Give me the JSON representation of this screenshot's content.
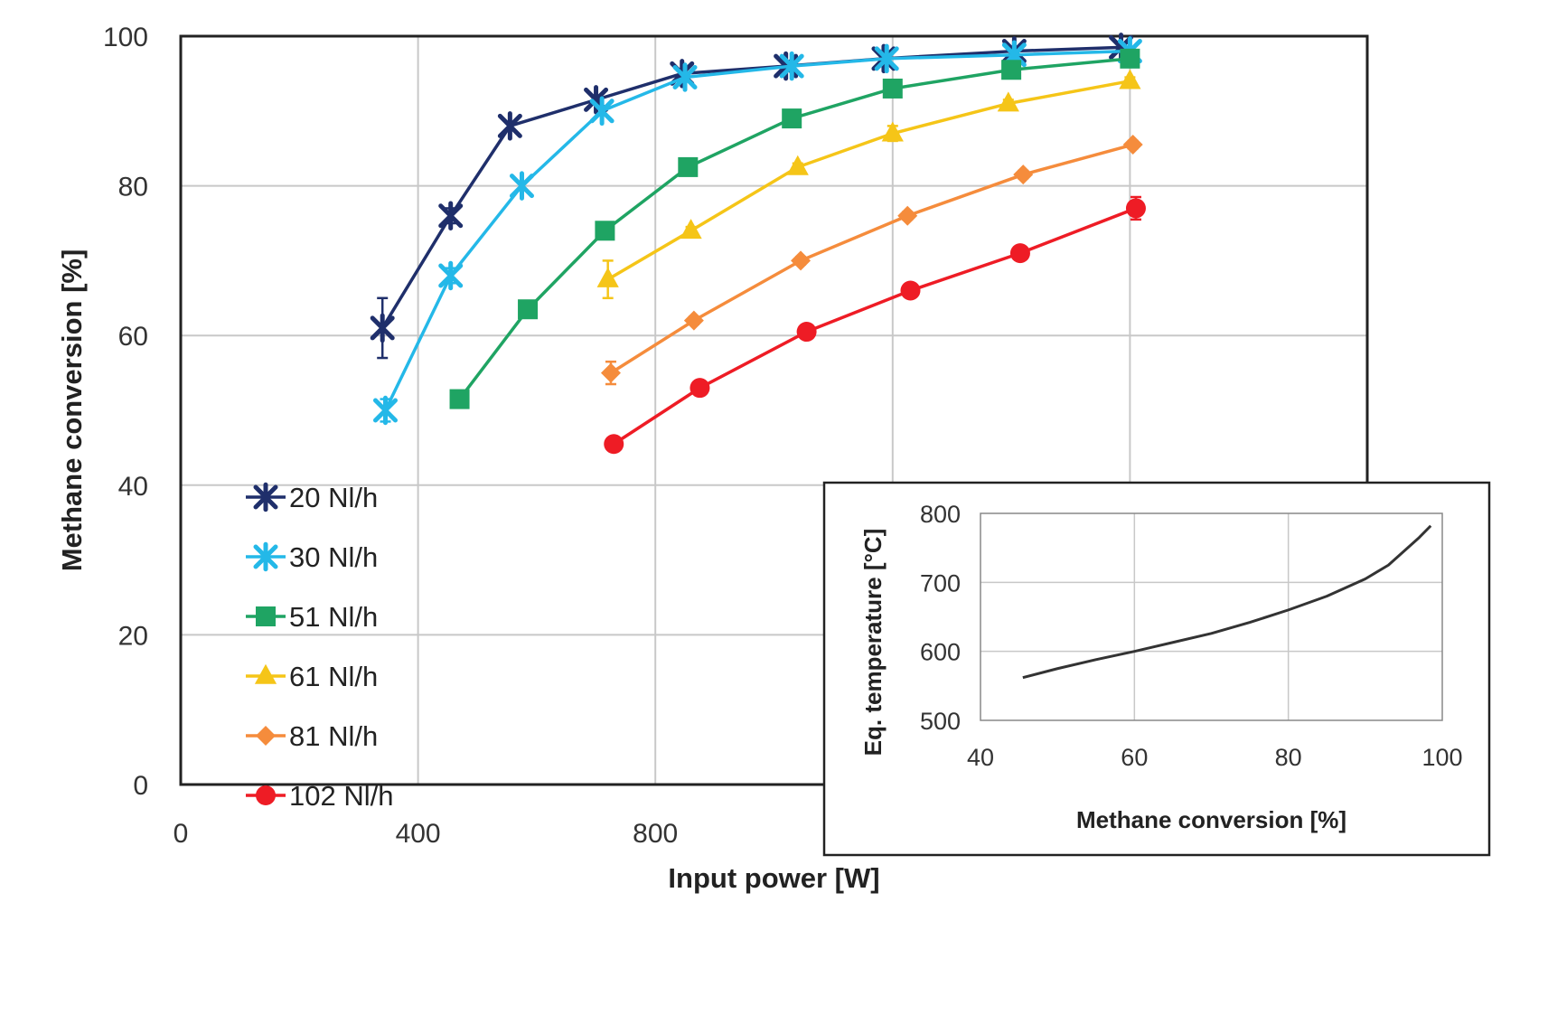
{
  "chart_data": [
    {
      "type": "line",
      "xlabel": "Input power [W]",
      "ylabel": "Methane conversion [%]",
      "xlim": [
        0,
        2000
      ],
      "ylim": [
        0,
        100
      ],
      "xticks": [
        "0",
        "400",
        "800",
        "1200",
        "1600",
        "2000"
      ],
      "yticks": [
        "0",
        "20",
        "40",
        "60",
        "80",
        "100"
      ],
      "grid": true,
      "legend_position": "left",
      "series": [
        {
          "name": "20 Nl/h",
          "color": "#1f2f6b",
          "marker": "asterisk",
          "x": [
            340,
            455,
            555,
            700,
            845,
            1020,
            1185,
            1405,
            1585
          ],
          "y": [
            61,
            76,
            88,
            91.5,
            95,
            96,
            97,
            98,
            98.5
          ],
          "error": [
            4,
            1,
            0.5,
            0.5,
            0.5,
            0.5,
            0.5,
            0.5,
            0.5
          ]
        },
        {
          "name": "30 Nl/h",
          "color": "#24b8e8",
          "marker": "asterisk",
          "x": [
            345,
            455,
            575,
            710,
            850,
            1030,
            1190,
            1405,
            1600
          ],
          "y": [
            50,
            68,
            80,
            90,
            94.5,
            96,
            97,
            97.5,
            98
          ],
          "error": [
            1.5,
            1,
            0.5,
            0.5,
            0.5,
            0.5,
            0.5,
            0.5,
            0.5
          ]
        },
        {
          "name": "51 Nl/h",
          "color": "#1fa463",
          "marker": "square",
          "x": [
            470,
            585,
            715,
            855,
            1030,
            1200,
            1400,
            1600
          ],
          "y": [
            51.5,
            63.5,
            74,
            82.5,
            89,
            93,
            95.5,
            97
          ],
          "error": [
            0.5,
            1,
            0.5,
            0.5,
            0.5,
            0.5,
            0.5,
            0.5
          ]
        },
        {
          "name": "61 Nl/h",
          "color": "#f5c518",
          "marker": "triangle",
          "x": [
            720,
            860,
            1040,
            1200,
            1395,
            1600
          ],
          "y": [
            67.5,
            74,
            82.5,
            87,
            91,
            94
          ],
          "error": [
            2.5,
            0.5,
            0.5,
            1,
            0.5,
            0.5
          ]
        },
        {
          "name": "81 Nl/h",
          "color": "#f58c3c",
          "marker": "diamond",
          "x": [
            725,
            865,
            1045,
            1225,
            1420,
            1605
          ],
          "y": [
            55,
            62,
            70,
            76,
            81.5,
            85.5
          ],
          "error": [
            1.5,
            0.5,
            0.5,
            0.5,
            0.5,
            0.5
          ]
        },
        {
          "name": "102 Nl/h",
          "color": "#ee1c25",
          "marker": "circle",
          "x": [
            730,
            875,
            1055,
            1230,
            1415,
            1610
          ],
          "y": [
            45.5,
            53,
            60.5,
            66,
            71,
            77
          ],
          "error": [
            0.5,
            0.5,
            0.5,
            0.5,
            0.5,
            1.5
          ]
        }
      ]
    },
    {
      "type": "line",
      "inset": true,
      "xlabel": "Methane conversion [%]",
      "ylabel": "Eq. temperature [°C]",
      "xlim": [
        40,
        100
      ],
      "ylim": [
        500,
        800
      ],
      "xticks": [
        "40",
        "60",
        "80",
        "100"
      ],
      "yticks": [
        "500",
        "600",
        "700",
        "800"
      ],
      "grid": true,
      "series": [
        {
          "color": "#333333",
          "x": [
            45.5,
            50,
            55,
            60,
            65,
            70,
            75,
            80,
            85,
            90,
            93,
            95,
            97,
            98.5
          ],
          "y": [
            562,
            575,
            588,
            600,
            613,
            626,
            642,
            660,
            680,
            705,
            725,
            745,
            765,
            782
          ]
        }
      ]
    }
  ]
}
